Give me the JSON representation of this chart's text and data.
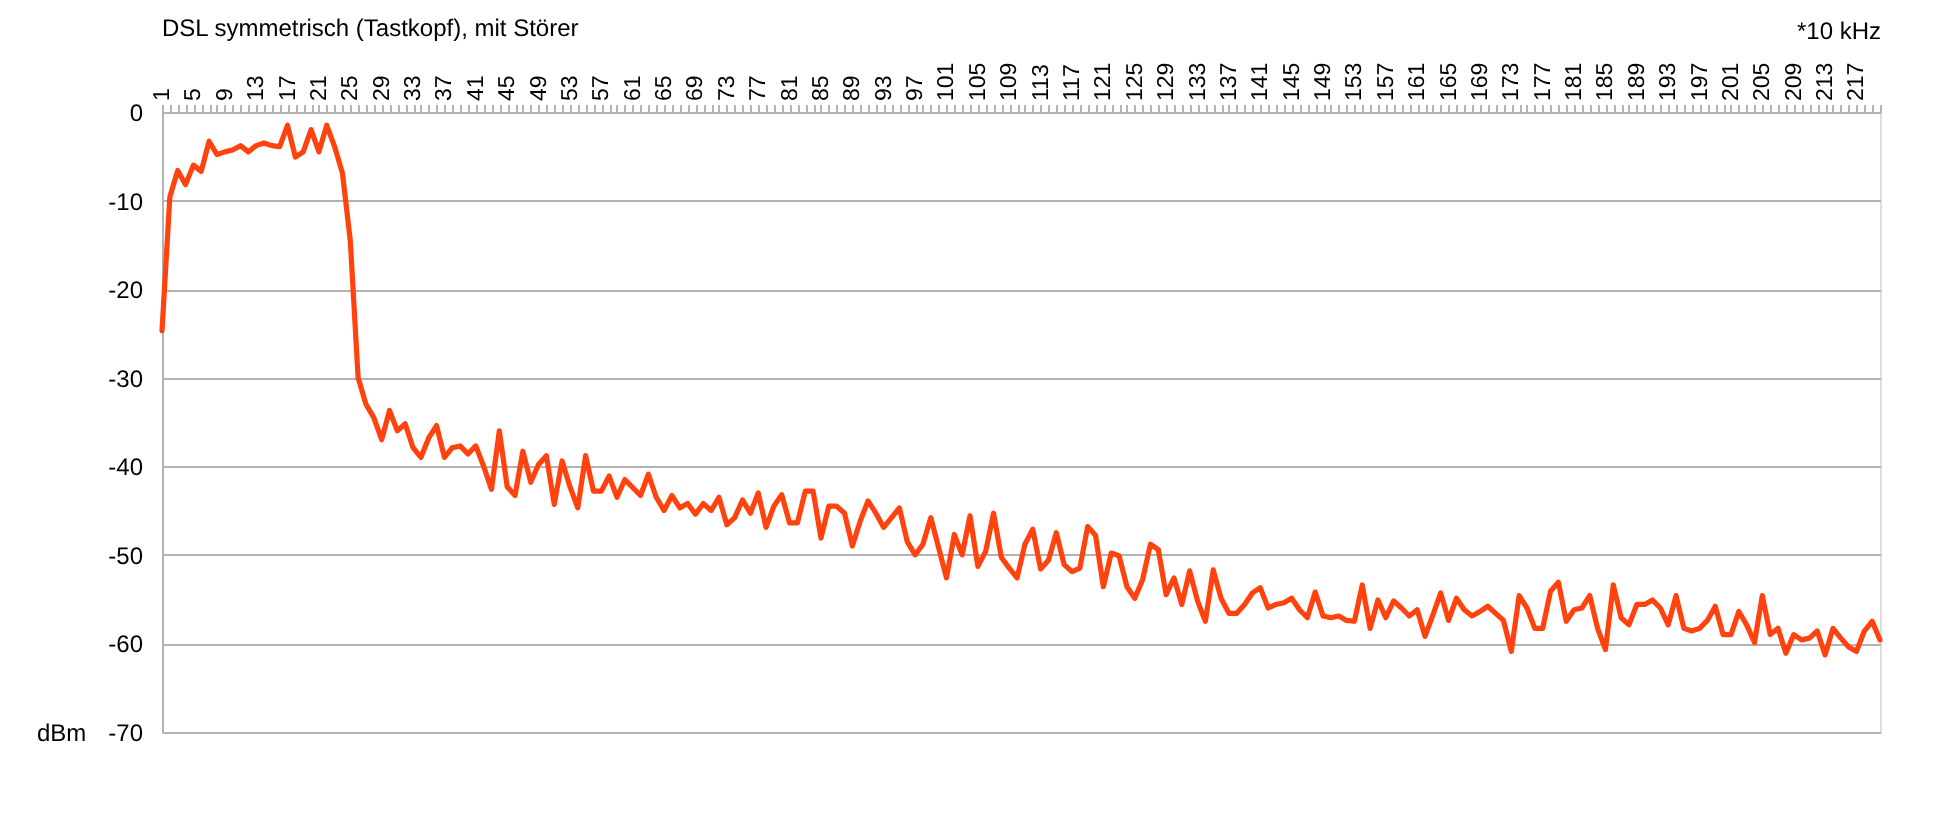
{
  "chart_data": {
    "type": "line",
    "title": "DSL symmetrisch (Tastkopf), mit Störer",
    "xlabel": "*10 kHz",
    "ylabel": "dBm",
    "categories": [
      "1",
      null,
      null,
      null,
      "5",
      null,
      null,
      null,
      "9",
      null,
      null,
      null,
      "13",
      null,
      null,
      null,
      "17",
      null,
      null,
      null,
      "21",
      null,
      null,
      null,
      "25",
      null,
      null,
      null,
      "29",
      null,
      null,
      null,
      "33",
      null,
      null,
      null,
      "37",
      null,
      null,
      null,
      "41",
      null,
      null,
      null,
      "45",
      null,
      null,
      null,
      "49",
      null,
      null,
      null,
      "53",
      null,
      null,
      null,
      "57",
      null,
      null,
      null,
      "61",
      null,
      null,
      null,
      "65",
      null,
      null,
      null,
      "69",
      null,
      null,
      null,
      "73",
      null,
      null,
      null,
      "77",
      null,
      null,
      null,
      "81",
      null,
      null,
      null,
      "85",
      null,
      null,
      null,
      "89",
      null,
      null,
      null,
      "93",
      null,
      null,
      null,
      "97",
      null,
      null,
      null,
      "101",
      null,
      null,
      null,
      "105",
      null,
      null,
      null,
      "109",
      null,
      null,
      null,
      "113",
      null,
      null,
      null,
      "117",
      null,
      null,
      null,
      "121",
      null,
      null,
      null,
      "125",
      null,
      null,
      null,
      "129",
      null,
      null,
      null,
      "133",
      null,
      null,
      null,
      "137",
      null,
      null,
      null,
      "141",
      null,
      null,
      null,
      "145",
      null,
      null,
      null,
      "149",
      null,
      null,
      null,
      "153",
      null,
      null,
      null,
      "157",
      null,
      null,
      null,
      "161",
      null,
      null,
      null,
      "165",
      null,
      null,
      null,
      "169",
      null,
      null,
      null,
      "173",
      null,
      null,
      null,
      "177",
      null,
      null,
      null,
      "181",
      null,
      null,
      null,
      "185",
      null,
      null,
      null,
      "189",
      null,
      null,
      null,
      "193",
      null,
      null,
      null,
      "197",
      null,
      null,
      null,
      "201",
      null,
      null,
      null,
      "205",
      null,
      null,
      null,
      "209",
      null,
      null,
      null,
      "213",
      null,
      null,
      null,
      "217",
      null,
      null,
      null
    ],
    "series": [
      {
        "color": "#ff420e",
        "values": [
          -24.7,
          -9.6,
          -6.6,
          -8.2,
          -6.0,
          -6.7,
          -3.3,
          -4.8,
          -4.5,
          -4.3,
          -3.8,
          -4.5,
          -3.8,
          -3.5,
          -3.8,
          -3.9,
          -1.5,
          -5.1,
          -4.5,
          -2.0,
          -4.5,
          -1.5,
          -3.9,
          -6.9,
          -14.5,
          -30.0,
          -33.0,
          -34.5,
          -37.0,
          -33.7,
          -36.0,
          -35.2,
          -37.9,
          -39.0,
          -36.8,
          -35.4,
          -39.0,
          -37.9,
          -37.7,
          -38.6,
          -37.7,
          -40.0,
          -42.6,
          -36.0,
          -42.3,
          -43.3,
          -38.3,
          -41.8,
          -39.8,
          -38.8,
          -44.3,
          -39.4,
          -42.3,
          -44.7,
          -38.8,
          -42.8,
          -42.8,
          -41.1,
          -43.5,
          -41.5,
          -42.4,
          -43.3,
          -40.9,
          -43.5,
          -45.0,
          -43.3,
          -44.7,
          -44.2,
          -45.4,
          -44.2,
          -45.0,
          -43.5,
          -46.6,
          -45.8,
          -43.8,
          -45.3,
          -43.0,
          -46.9,
          -44.5,
          -43.2,
          -46.4,
          -46.4,
          -42.8,
          -42.8,
          -48.1,
          -44.5,
          -44.5,
          -45.3,
          -49.0,
          -46.2,
          -43.9,
          -45.3,
          -46.9,
          -45.8,
          -44.7,
          -48.5,
          -50.0,
          -48.8,
          -45.8,
          -49.2,
          -52.6,
          -47.7,
          -50.0,
          -45.6,
          -51.3,
          -49.6,
          -45.3,
          -50.3,
          -51.5,
          -52.6,
          -48.8,
          -47.1,
          -51.6,
          -50.6,
          -47.5,
          -51.1,
          -51.9,
          -51.5,
          -46.8,
          -47.8,
          -53.6,
          -49.8,
          -50.1,
          -53.6,
          -54.9,
          -52.8,
          -48.8,
          -49.4,
          -54.5,
          -52.6,
          -55.6,
          -51.8,
          -55.2,
          -57.5,
          -51.7,
          -54.9,
          -56.6,
          -56.6,
          -55.6,
          -54.3,
          -53.7,
          -56.0,
          -55.6,
          -55.4,
          -54.9,
          -56.2,
          -57.1,
          -54.2,
          -56.9,
          -57.1,
          -56.9,
          -57.4,
          -57.5,
          -53.4,
          -58.3,
          -55.1,
          -57.1,
          -55.2,
          -56.0,
          -56.9,
          -56.2,
          -59.2,
          -56.8,
          -54.3,
          -57.4,
          -54.9,
          -56.2,
          -56.9,
          -56.4,
          -55.8,
          -56.6,
          -57.4,
          -60.9,
          -54.6,
          -56.0,
          -58.3,
          -58.3,
          -54.1,
          -53.1,
          -57.5,
          -56.2,
          -56.0,
          -54.6,
          -58.3,
          -60.7,
          -53.4,
          -57.1,
          -57.9,
          -55.6,
          -55.6,
          -55.1,
          -56.0,
          -57.9,
          -54.6,
          -58.3,
          -58.6,
          -58.3,
          -57.4,
          -55.8,
          -59.0,
          -59.0,
          -56.4,
          -57.9,
          -59.9,
          -54.6,
          -59.0,
          -58.3,
          -61.1,
          -59.0,
          -59.6,
          -59.4,
          -58.6,
          -61.3,
          -58.3,
          -59.4,
          -60.4,
          -60.9,
          -58.6,
          -57.5,
          -59.6
        ]
      }
    ],
    "ylim": [
      -70,
      0
    ],
    "yticks": [
      0,
      -10,
      -20,
      -30,
      -40,
      -50,
      -60,
      -70
    ],
    "grid": "y",
    "line_style": "solid"
  }
}
